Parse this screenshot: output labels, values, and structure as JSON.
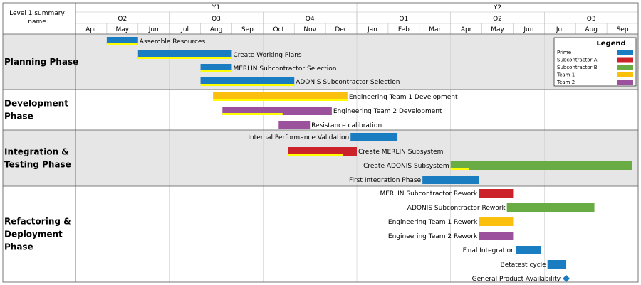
{
  "header": {
    "corner_label_line1": "Level 1 summary",
    "corner_label_line2": "name"
  },
  "colors": {
    "prime": "#1a7cc1",
    "subcontractor_a": "#cc2229",
    "subcontractor_b": "#6aac44",
    "team_1": "#fbc00e",
    "team_2": "#9c519c",
    "progress": "#ffff00",
    "band": "#e6e6e6"
  },
  "chart_data": {
    "type": "gantt",
    "title": "",
    "x_axis": {
      "unit": "month",
      "range": [
        "Apr Y1",
        "Sep Y2"
      ],
      "years": [
        {
          "label": "Y1",
          "months": 9
        },
        {
          "label": "Y2",
          "months": 9
        }
      ],
      "quarters": [
        {
          "label": "Q2",
          "months": 3
        },
        {
          "label": "Q3",
          "months": 3
        },
        {
          "label": "Q4",
          "months": 3
        },
        {
          "label": "Q1",
          "months": 3
        },
        {
          "label": "Q2",
          "months": 3
        },
        {
          "label": "Q3",
          "months": 3
        }
      ],
      "months": [
        "Apr",
        "May",
        "Jun",
        "Jul",
        "Aug",
        "Sep",
        "Oct",
        "Nov",
        "Dec",
        "Jan",
        "Feb",
        "Mar",
        "Apr",
        "May",
        "Jun",
        "Jul",
        "Aug",
        "Sep"
      ]
    },
    "legend": {
      "title": "Legend",
      "placement": "top-right",
      "items": [
        {
          "label": "Prime",
          "color_key": "prime"
        },
        {
          "label": "Subcontractor A",
          "color_key": "subcontractor_a"
        },
        {
          "label": "Subcontractor B",
          "color_key": "subcontractor_b"
        },
        {
          "label": "Team 1",
          "color_key": "team_1"
        },
        {
          "label": "Team 2",
          "color_key": "team_2"
        }
      ]
    },
    "phases": [
      {
        "label_lines": [
          "Planning Phase"
        ],
        "shaded": true,
        "tasks": [
          {
            "name": "Assemble Resources",
            "start": 1.0,
            "end": 2.0,
            "color_key": "prime",
            "progress": 1.0,
            "label_side": "right"
          },
          {
            "name": "Create Working Plans",
            "start": 2.0,
            "end": 5.0,
            "color_key": "prime",
            "progress": 1.0,
            "label_side": "right"
          },
          {
            "name": "MERLIN Subcontractor Selection",
            "start": 4.0,
            "end": 5.0,
            "color_key": "prime",
            "progress": 1.0,
            "label_side": "right"
          },
          {
            "name": "ADONIS Subcontractor Selection",
            "start": 4.0,
            "end": 7.0,
            "color_key": "prime",
            "progress": 1.0,
            "label_side": "right"
          }
        ]
      },
      {
        "label_lines": [
          "Development",
          "Phase"
        ],
        "shaded": false,
        "tasks": [
          {
            "name": "Engineering Team 1 Development",
            "start": 4.4,
            "end": 8.7,
            "color_key": "team_1",
            "progress": 1.0,
            "label_side": "right"
          },
          {
            "name": "Engineering Team 2 Development",
            "start": 4.7,
            "end": 8.2,
            "color_key": "team_2",
            "progress": 0.55,
            "label_side": "right"
          },
          {
            "name": "Resistance calibration",
            "start": 6.5,
            "end": 7.5,
            "color_key": "team_2",
            "progress": 0,
            "label_side": "right"
          }
        ]
      },
      {
        "label_lines": [
          "Integration &",
          "Testing Phase"
        ],
        "shaded": true,
        "tasks": [
          {
            "name": "Internal Performance Validation",
            "start": 8.8,
            "end": 10.3,
            "color_key": "prime",
            "progress": 0,
            "label_side": "left"
          },
          {
            "name": "Create MERLIN Subsystem",
            "start": 6.8,
            "end": 9.0,
            "color_key": "subcontractor_a",
            "progress": 0.8,
            "label_side": "right"
          },
          {
            "name": "Create ADONIS Subsystem",
            "start": 12.0,
            "end": 17.8,
            "color_key": "subcontractor_b",
            "progress": 0.1,
            "label_side": "left"
          },
          {
            "name": "First Integration Phase",
            "start": 11.1,
            "end": 12.9,
            "color_key": "prime",
            "progress": 0,
            "label_side": "left"
          }
        ]
      },
      {
        "label_lines": [
          "Refactoring &",
          "Deployment",
          "Phase"
        ],
        "shaded": false,
        "tasks": [
          {
            "name": "MERLIN Subcontractor Rework",
            "start": 12.9,
            "end": 14.0,
            "color_key": "subcontractor_a",
            "progress": 0,
            "label_side": "left"
          },
          {
            "name": "ADONIS Subcontractor Rework",
            "start": 13.8,
            "end": 16.6,
            "color_key": "subcontractor_b",
            "progress": 0,
            "label_side": "left"
          },
          {
            "name": "Engineering Team 1 Rework",
            "start": 12.9,
            "end": 14.0,
            "color_key": "team_1",
            "progress": 0,
            "label_side": "left"
          },
          {
            "name": "Engineering Team 2 Rework",
            "start": 12.9,
            "end": 14.0,
            "color_key": "team_2",
            "progress": 0,
            "label_side": "left"
          },
          {
            "name": "Final Integration",
            "start": 14.1,
            "end": 14.9,
            "color_key": "prime",
            "progress": 0,
            "label_side": "left"
          },
          {
            "name": "Betatest cycle",
            "start": 15.1,
            "end": 15.7,
            "color_key": "prime",
            "progress": 0,
            "label_side": "left"
          },
          {
            "name": "General Product Availability",
            "milestone": true,
            "start": 15.7,
            "color_key": "prime",
            "label_side": "left"
          }
        ]
      }
    ]
  }
}
